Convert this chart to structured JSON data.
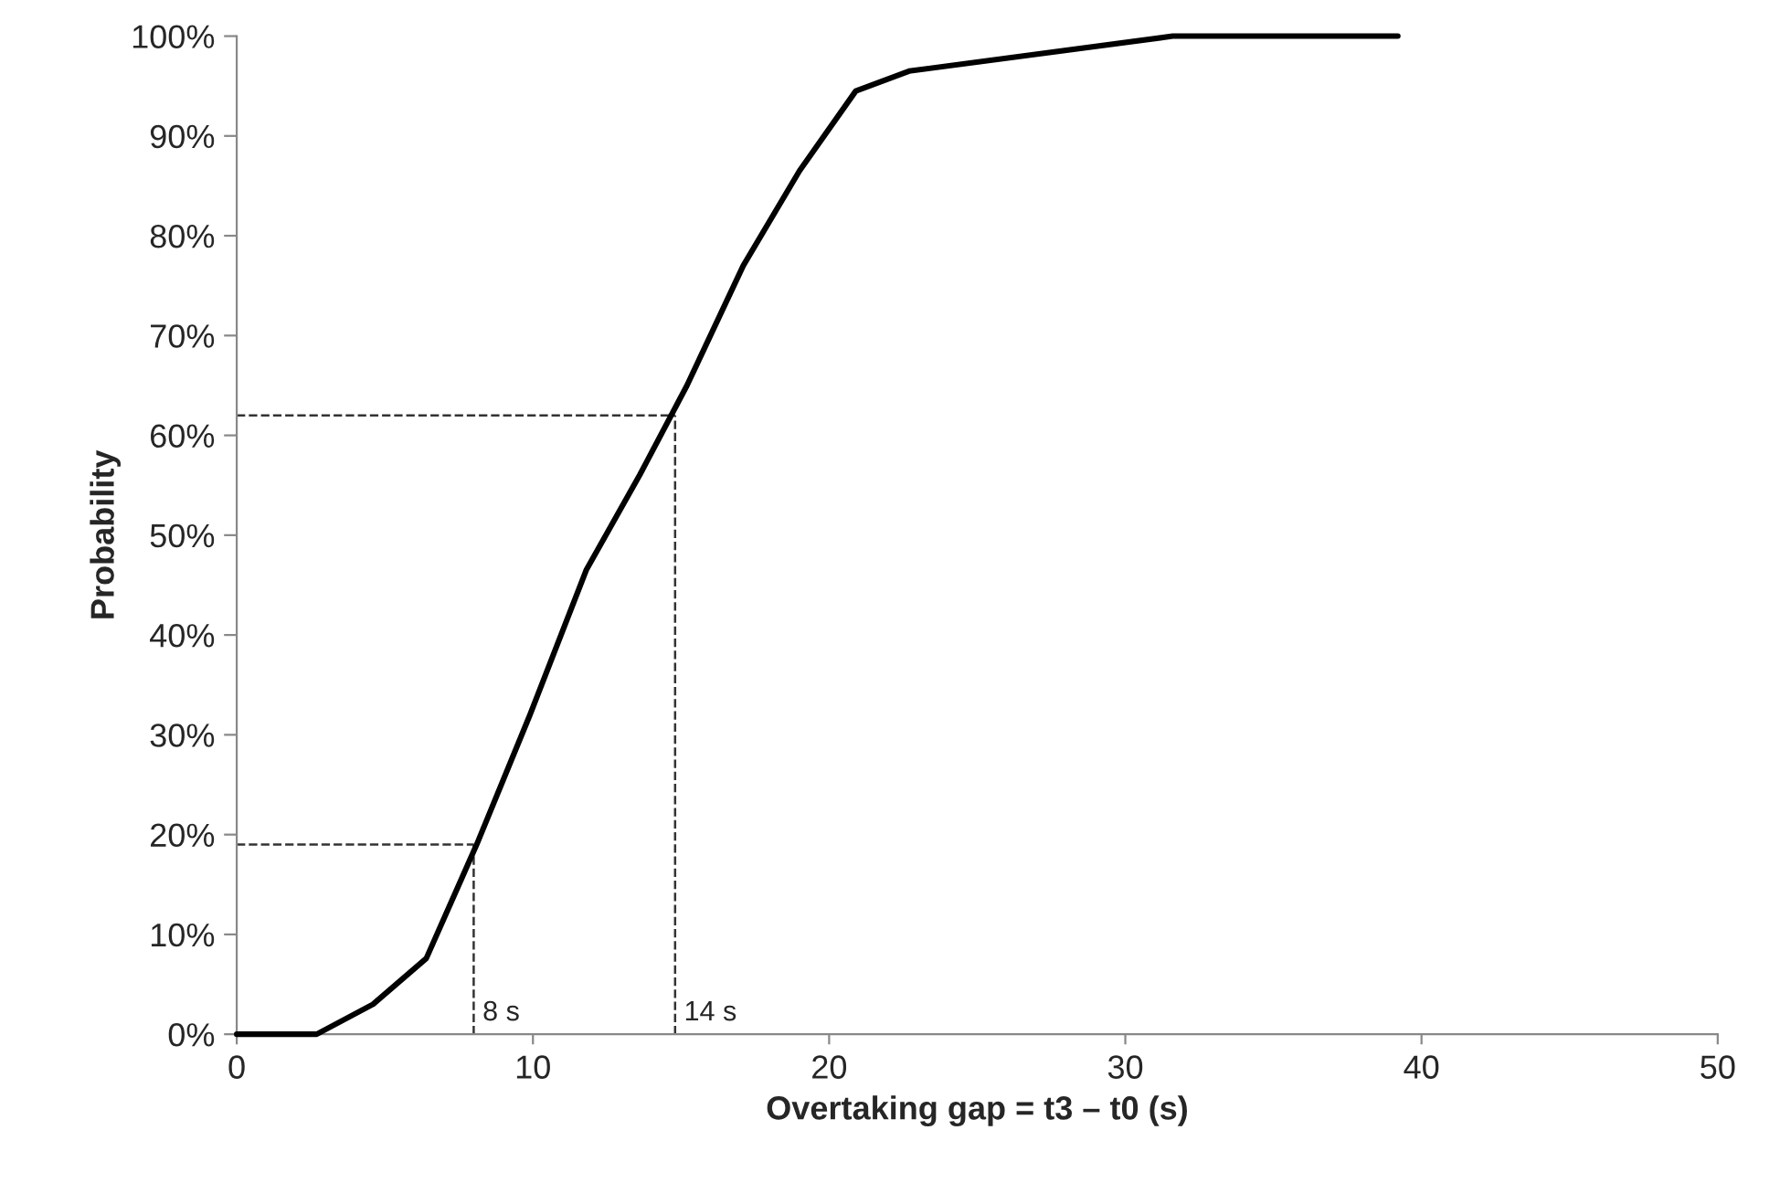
{
  "chart_data": {
    "type": "line",
    "xlabel": "Overtaking gap = t3 – t0 (s)",
    "ylabel": "Probability",
    "x": [
      0,
      2.7,
      4.6,
      6.4,
      8.1,
      9.9,
      11.8,
      13.6,
      15.2,
      17.1,
      19.0,
      20.9,
      22.7,
      31.6,
      39.2
    ],
    "series": [
      {
        "color": "#000000",
        "values": [
          0,
          0,
          3,
          7.6,
          19,
          32,
          46.5,
          56,
          65,
          77,
          86.5,
          94.5,
          96.5,
          100,
          100
        ]
      }
    ],
    "xlim": [
      0,
      50
    ],
    "xticks": [
      0,
      10,
      20,
      30,
      40,
      50
    ],
    "ylim": [
      0,
      100
    ],
    "yticks": [
      {
        "value": 0,
        "label": "0%"
      },
      {
        "value": 10,
        "label": "10%"
      },
      {
        "value": 20,
        "label": "20%"
      },
      {
        "value": 30,
        "label": "30%"
      },
      {
        "value": 40,
        "label": "40%"
      },
      {
        "value": 50,
        "label": "50%"
      },
      {
        "value": 60,
        "label": "60%"
      },
      {
        "value": 70,
        "label": "70%"
      },
      {
        "value": 80,
        "label": "80%"
      },
      {
        "value": 90,
        "label": "90%"
      },
      {
        "value": 100,
        "label": "100%"
      }
    ],
    "ref_lines": [
      {
        "axis": "x",
        "value": 8,
        "label": "8 s",
        "line_style": "dashed"
      },
      {
        "axis": "x",
        "value": 14.8,
        "label": "14 s",
        "line_style": "dashed"
      },
      {
        "axis": "y",
        "value": 19,
        "label": null,
        "line_style": "dashed"
      },
      {
        "axis": "y",
        "value": 62,
        "label": null,
        "line_style": "dashed"
      }
    ],
    "grid": false,
    "marker": "none",
    "line_style": "solid"
  }
}
